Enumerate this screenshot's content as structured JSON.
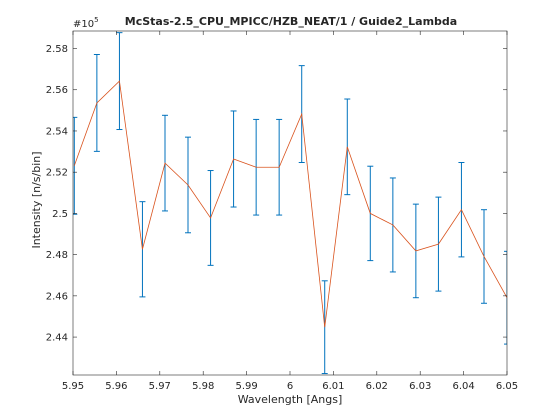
{
  "chart_data": {
    "type": "line",
    "title": "McStas-2.5_CPU_MPICC/HZB_NEAT/1 / Guide2_Lambda",
    "xlabel": "Wavelength [Angs]",
    "ylabel": "Intensity [n/s/bin]",
    "exponent_base": "#10",
    "exponent_power": "5",
    "xlim": [
      5.95,
      6.05
    ],
    "ylim": [
      2.4216,
      2.5885
    ],
    "x_ticks": [
      5.95,
      5.96,
      5.97,
      5.98,
      5.99,
      6.0,
      6.01,
      6.02,
      6.03,
      6.04,
      6.05
    ],
    "x_tick_labels": [
      "5.95",
      "5.96",
      "5.97",
      "5.98",
      "5.99",
      "6",
      "6.01",
      "6.02",
      "6.03",
      "6.04",
      "6.05"
    ],
    "y_ticks": [
      2.44,
      2.46,
      2.48,
      2.5,
      2.52,
      2.54,
      2.56,
      2.58
    ],
    "y_tick_labels": [
      "2.44",
      "2.46",
      "2.48",
      "2.5",
      "2.52",
      "2.54",
      "2.56",
      "2.58"
    ],
    "grid": false,
    "series": [
      {
        "x": [
          5.9503,
          5.9555,
          5.9607,
          5.966,
          5.9712,
          5.9765,
          5.9817,
          5.987,
          5.9922,
          5.9975,
          6.0027,
          6.008,
          6.0132,
          6.0185,
          6.0237,
          6.029,
          6.0342,
          6.0395,
          6.0447,
          6.05
        ],
        "y": [
          2.5231,
          2.5536,
          2.5642,
          2.4826,
          2.5244,
          2.5138,
          2.4978,
          2.5264,
          2.5224,
          2.5224,
          2.5482,
          2.4448,
          2.5323,
          2.5,
          2.4944,
          2.4818,
          2.4851,
          2.5018,
          2.4791,
          2.4591
        ],
        "err": [
          0.0235,
          0.0235,
          0.0235,
          0.0231,
          0.0232,
          0.0232,
          0.023,
          0.0233,
          0.0232,
          0.0232,
          0.0235,
          0.0225,
          0.0232,
          0.0229,
          0.0228,
          0.0227,
          0.0228,
          0.0229,
          0.0227,
          0.0225
        ]
      }
    ],
    "colors": {
      "line": "#d9531e",
      "errorbar": "#0072bd",
      "axes": "#262626",
      "text": "#262626"
    }
  }
}
